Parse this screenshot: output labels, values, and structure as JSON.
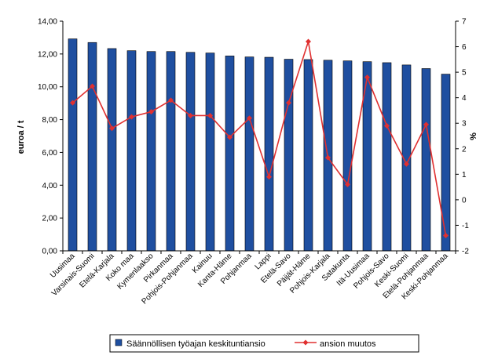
{
  "chart_data": {
    "type": "bar",
    "categories": [
      "Uusimaa",
      "Varsinais-Suomi",
      "Etelä-Karjala",
      "Koko maa",
      "Kymenlaakso",
      "Pirkanmaa",
      "Pohjois-Pohjanmaa",
      "Kainuu",
      "Kanta-Häme",
      "Pohjanmaa",
      "Lappi",
      "Etelä-Savo",
      "Päijät-Häme",
      "Pohjois-Karjala",
      "Satakunta",
      "Itä-Uusimaa",
      "Pohjois-Savo",
      "Keski-Suomi",
      "Etelä-Pohjanmaa",
      "Keski-Pohjanmaa"
    ],
    "series": [
      {
        "name": "Säännöllisen työajan keskituntiansio",
        "type": "bar",
        "axis": "left",
        "color": "#1F4FA0",
        "values": [
          12.92,
          12.7,
          12.33,
          12.2,
          12.15,
          12.15,
          12.1,
          12.06,
          11.88,
          11.82,
          11.8,
          11.68,
          11.66,
          11.62,
          11.58,
          11.53,
          11.47,
          11.33,
          11.11,
          10.77
        ]
      },
      {
        "name": "ansion muutos",
        "type": "line",
        "axis": "right",
        "color": "#E03030",
        "values": [
          3.8,
          4.45,
          2.8,
          3.25,
          3.45,
          3.9,
          3.3,
          3.3,
          2.45,
          3.2,
          0.9,
          3.8,
          6.2,
          1.65,
          0.6,
          4.8,
          2.9,
          1.4,
          2.95,
          -1.4
        ]
      }
    ],
    "yaxis_left": {
      "label": "euroa / t",
      "min": 0,
      "max": 14,
      "step": 2,
      "ticks": [
        "0,00",
        "2,00",
        "4,00",
        "6,00",
        "8,00",
        "10,00",
        "12,00",
        "14,00"
      ]
    },
    "yaxis_right": {
      "label": "%",
      "min": -2,
      "max": 7,
      "step": 1,
      "ticks": [
        "-2",
        "-1",
        "0",
        "1",
        "2",
        "3",
        "4",
        "5",
        "6",
        "7"
      ]
    },
    "grid": false,
    "legend_position": "bottom"
  }
}
